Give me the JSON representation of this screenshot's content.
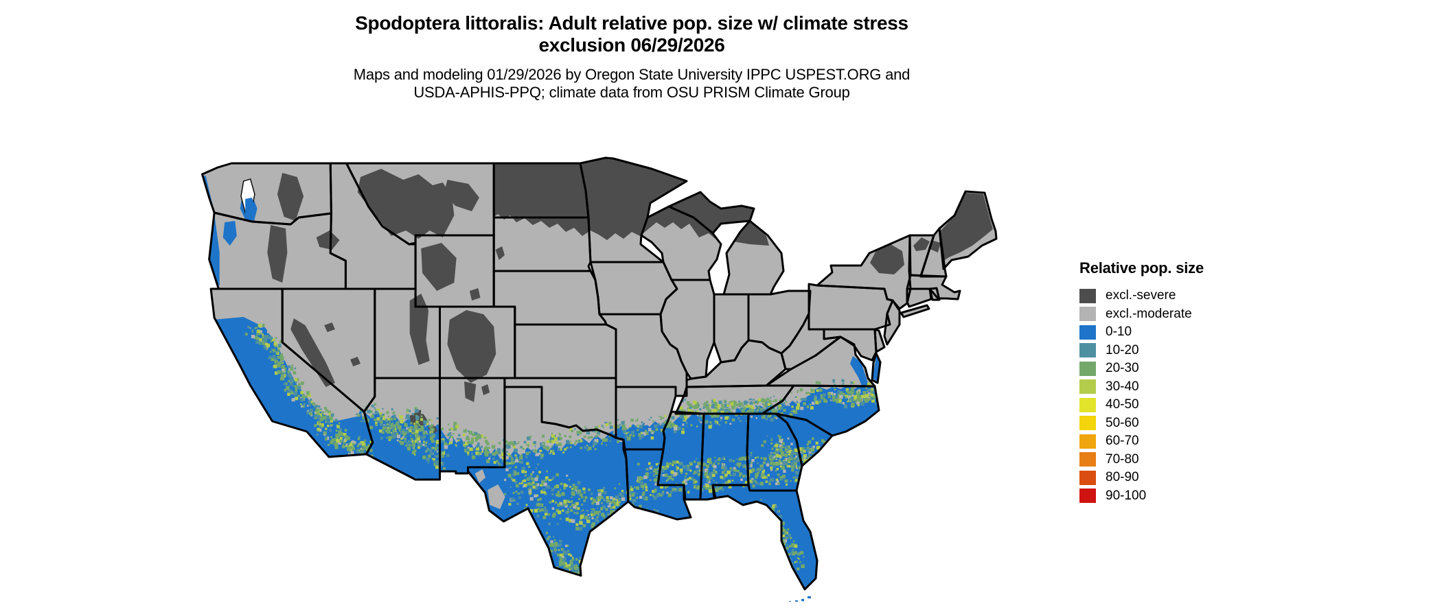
{
  "header": {
    "title_line1": "Spodoptera littoralis: Adult relative pop. size w/ climate stress",
    "title_line2": "exclusion 06/29/2026",
    "subtitle_line1": "Maps and modeling 01/29/2026 by Oregon State University IPPC USPEST.ORG and",
    "subtitle_line2": "USDA-APHIS-PPQ; climate data from OSU PRISM Climate Group"
  },
  "legend": {
    "title": "Relative pop. size",
    "items": [
      {
        "label": "excl.-severe",
        "color": "#4D4D4D"
      },
      {
        "label": "excl.-moderate",
        "color": "#B3B3B3"
      },
      {
        "label": "0-10",
        "color": "#1E74C8"
      },
      {
        "label": "10-20",
        "color": "#4E90A2"
      },
      {
        "label": "20-30",
        "color": "#74A86B"
      },
      {
        "label": "30-40",
        "color": "#B4CC4C"
      },
      {
        "label": "40-50",
        "color": "#E2E32B"
      },
      {
        "label": "50-60",
        "color": "#F4D40A"
      },
      {
        "label": "60-70",
        "color": "#EFA60E"
      },
      {
        "label": "70-80",
        "color": "#E87E16"
      },
      {
        "label": "80-90",
        "color": "#D94E10"
      },
      {
        "label": "90-100",
        "color": "#CE1310"
      }
    ]
  },
  "map": {
    "region": "contiguous United States",
    "border_color": "#000000",
    "visible_categories": [
      "excl.-severe",
      "excl.-moderate",
      "0-10",
      "10-20",
      "20-30",
      "30-40"
    ]
  }
}
